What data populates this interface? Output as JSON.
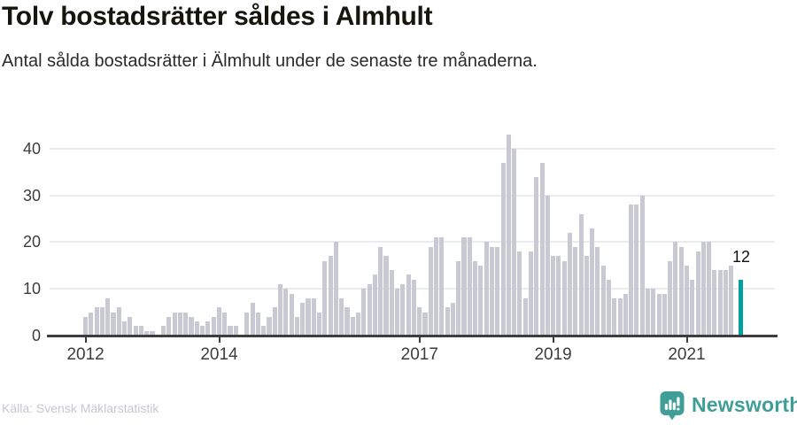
{
  "header": {
    "title": "Tolv bostadsrätter såldes i Almhult",
    "subtitle": "Antal sålda bostadsrätter i Älmhult under de senaste tre månaderna."
  },
  "chart_data": {
    "type": "bar",
    "title": "Tolv bostadsrätter såldes i Almhult",
    "subtitle": "Antal sålda bostadsrätter i Älmhult under de senaste tre månaderna.",
    "x_unit": "month",
    "x_start": "2012-01",
    "values": [
      4,
      5,
      6,
      6,
      8,
      5,
      6,
      3,
      4,
      2,
      2,
      1,
      1,
      0,
      2,
      4,
      5,
      5,
      5,
      4,
      3,
      2,
      3,
      4,
      6,
      5,
      2,
      2,
      0,
      5,
      7,
      5,
      2,
      4,
      6,
      11,
      10,
      9,
      4,
      7,
      8,
      8,
      5,
      16,
      17,
      20,
      8,
      6,
      4,
      5,
      10,
      11,
      13,
      19,
      17,
      14,
      10,
      11,
      13,
      12,
      6,
      5,
      19,
      21,
      21,
      6,
      7,
      16,
      21,
      21,
      16,
      15,
      20,
      19,
      19,
      37,
      43,
      40,
      18,
      8,
      18,
      34,
      37,
      30,
      17,
      17,
      16,
      22,
      19,
      26,
      17,
      23,
      19,
      15,
      12,
      8,
      8,
      9,
      28,
      28,
      30,
      10,
      10,
      9,
      9,
      16,
      20,
      19,
      15,
      12,
      18,
      20,
      20,
      14,
      14,
      14,
      15,
      12
    ],
    "ylim": [
      0,
      45
    ],
    "y_ticks": [
      "0",
      "10",
      "20",
      "30",
      "40"
    ],
    "y_tick_values": [
      0,
      10,
      20,
      30,
      40
    ],
    "x_ticks": [
      {
        "label": "2012",
        "month_index": 0
      },
      {
        "label": "2014",
        "month_index": 24
      },
      {
        "label": "2017",
        "month_index": 60
      },
      {
        "label": "2019",
        "month_index": 84
      },
      {
        "label": "2021",
        "month_index": 108
      }
    ],
    "grid": "horizontal",
    "legend": "none",
    "bar_color": "#c9c9d4",
    "highlight": {
      "index": 117,
      "value": 12,
      "label": "12",
      "color": "#00a0a0"
    }
  },
  "footer": {
    "source": "Källa: Svensk Mäklarstatistik",
    "brand": "Newsworthy"
  },
  "colors": {
    "background": "#ffffff",
    "title": "#16160f",
    "subtitle": "#2b2b2b",
    "axis": "#3d3d3d",
    "gridline": "#ebebef",
    "bar": "#c9c9d4",
    "highlight": "#00a0a0",
    "source_text": "#c6c6d1",
    "brand_teal": "#3f9e98"
  }
}
